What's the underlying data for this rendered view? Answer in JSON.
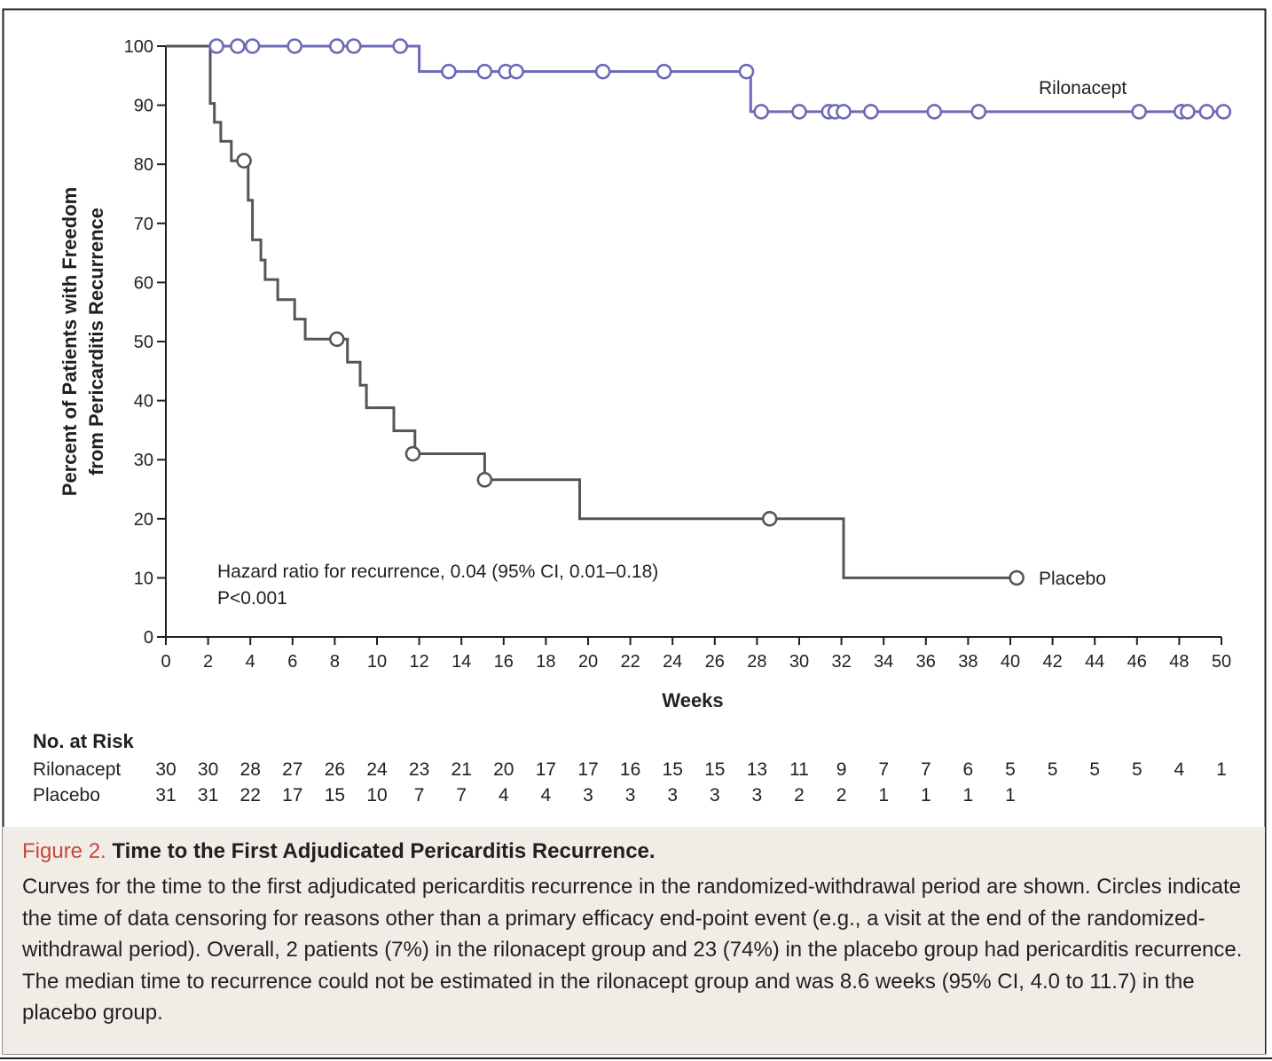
{
  "chart_data": {
    "type": "line",
    "title": "",
    "xlabel": "Weeks",
    "ylabel_line1": "Percent of Patients with Freedom",
    "ylabel_line2": "from Pericarditis Recurrence",
    "xlim": [
      0,
      50
    ],
    "ylim": [
      0,
      100
    ],
    "x_ticks": [
      0,
      2,
      4,
      6,
      8,
      10,
      12,
      14,
      16,
      18,
      20,
      22,
      24,
      26,
      28,
      30,
      32,
      34,
      36,
      38,
      40,
      42,
      44,
      46,
      48,
      50
    ],
    "y_ticks": [
      0,
      10,
      20,
      30,
      40,
      50,
      60,
      70,
      80,
      90,
      100
    ],
    "grid": false,
    "colors": {
      "rilonacept": "#6b6bb8",
      "placebo": "#55555a",
      "caption_bg": "#f1ede6",
      "figure_label": "#c8473f"
    },
    "series": [
      {
        "name": "Rilonacept",
        "step": [
          [
            0,
            100
          ],
          [
            12,
            100
          ],
          [
            12,
            95.7
          ],
          [
            27.7,
            95.7
          ],
          [
            27.7,
            88.9
          ],
          [
            50,
            88.9
          ]
        ],
        "censored": [
          [
            2.4,
            100
          ],
          [
            3.4,
            100
          ],
          [
            4.1,
            100
          ],
          [
            6.1,
            100
          ],
          [
            8.1,
            100
          ],
          [
            8.9,
            100
          ],
          [
            11.1,
            100
          ],
          [
            13.4,
            95.7
          ],
          [
            15.1,
            95.7
          ],
          [
            16.1,
            95.7
          ],
          [
            16.6,
            95.7
          ],
          [
            20.7,
            95.7
          ],
          [
            23.6,
            95.7
          ],
          [
            27.5,
            95.7
          ],
          [
            28.2,
            88.9
          ],
          [
            30.0,
            88.9
          ],
          [
            31.4,
            88.9
          ],
          [
            31.7,
            88.9
          ],
          [
            32.1,
            88.9
          ],
          [
            33.4,
            88.9
          ],
          [
            36.4,
            88.9
          ],
          [
            38.5,
            88.9
          ],
          [
            46.1,
            88.9
          ],
          [
            48.1,
            88.9
          ],
          [
            48.4,
            88.9
          ],
          [
            49.3,
            88.9
          ],
          [
            50.1,
            88.9
          ]
        ]
      },
      {
        "name": "Placebo",
        "step": [
          [
            0,
            100
          ],
          [
            2.1,
            100
          ],
          [
            2.1,
            90.3
          ],
          [
            2.3,
            90.3
          ],
          [
            2.3,
            87.1
          ],
          [
            2.6,
            87.1
          ],
          [
            2.6,
            83.9
          ],
          [
            3.1,
            83.9
          ],
          [
            3.1,
            80.6
          ],
          [
            3.9,
            80.6
          ],
          [
            3.9,
            73.9
          ],
          [
            4.1,
            73.9
          ],
          [
            4.1,
            67.2
          ],
          [
            4.5,
            67.2
          ],
          [
            4.5,
            63.8
          ],
          [
            4.7,
            63.8
          ],
          [
            4.7,
            60.5
          ],
          [
            5.3,
            60.5
          ],
          [
            5.3,
            57.1
          ],
          [
            6.1,
            57.1
          ],
          [
            6.1,
            53.8
          ],
          [
            6.6,
            53.8
          ],
          [
            6.6,
            50.4
          ],
          [
            8.6,
            50.4
          ],
          [
            8.6,
            46.5
          ],
          [
            9.2,
            46.5
          ],
          [
            9.2,
            42.6
          ],
          [
            9.5,
            42.6
          ],
          [
            9.5,
            38.8
          ],
          [
            10.8,
            38.8
          ],
          [
            10.8,
            34.9
          ],
          [
            11.8,
            34.9
          ],
          [
            11.8,
            31.0
          ],
          [
            15.1,
            31.0
          ],
          [
            15.1,
            26.6
          ],
          [
            19.6,
            26.6
          ],
          [
            19.6,
            20.0
          ],
          [
            32.1,
            20.0
          ],
          [
            32.1,
            10.0
          ],
          [
            40.3,
            10.0
          ]
        ],
        "censored": [
          [
            3.7,
            80.6
          ],
          [
            8.1,
            50.4
          ],
          [
            11.7,
            31.0
          ],
          [
            15.1,
            26.6
          ],
          [
            28.6,
            20.0
          ],
          [
            40.3,
            10.0
          ]
        ]
      }
    ],
    "annotations": [
      "Hazard ratio for recurrence, 0.04 (95% CI, 0.01–0.18)",
      "P<0.001"
    ],
    "at_risk": {
      "title": "No. at Risk",
      "rows": [
        {
          "label": "Rilonacept",
          "values": [
            "30",
            "30",
            "28",
            "27",
            "26",
            "24",
            "23",
            "21",
            "20",
            "17",
            "17",
            "16",
            "15",
            "15",
            "13",
            "11",
            "9",
            "7",
            "7",
            "6",
            "5",
            "5",
            "5",
            "5",
            "4",
            "1"
          ]
        },
        {
          "label": "Placebo",
          "values": [
            "31",
            "31",
            "22",
            "17",
            "15",
            "10",
            "7",
            "7",
            "4",
            "4",
            "3",
            "3",
            "3",
            "3",
            "3",
            "2",
            "2",
            "1",
            "1",
            "1",
            "1"
          ]
        }
      ]
    }
  },
  "caption": {
    "label": "Figure 2.",
    "title": "Time to the First Adjudicated Pericarditis Recurrence.",
    "body": "Curves for the time to the first adjudicated pericarditis recurrence in the randomized-withdrawal period are shown. Circles indicate the time of data censoring for reasons other than a primary efficacy end-point event (e.g., a visit at the end of the randomized-withdrawal period). Overall, 2 patients (7%) in the rilonacept group and 23 (74%) in the placebo group had pericarditis recurrence. The median time to recurrence could not be estimated in the rilonacept group and was 8.6 weeks (95% CI, 4.0 to 11.7) in the placebo group."
  }
}
